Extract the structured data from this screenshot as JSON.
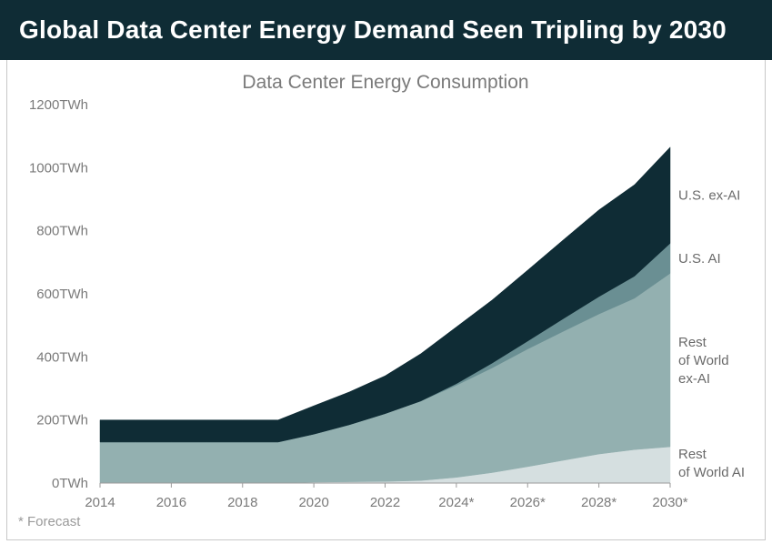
{
  "header": {
    "title": "Global Data Center Energy Demand Seen Tripling by 2030"
  },
  "footnote": "* Forecast",
  "chart_data": {
    "type": "area",
    "stacked": true,
    "title": "Data Center Energy Consumption",
    "xlabel": "",
    "ylabel": "",
    "x": [
      2014,
      2015,
      2016,
      2017,
      2018,
      2019,
      2020,
      2021,
      2022,
      2023,
      2024,
      2025,
      2026,
      2027,
      2028,
      2029,
      2030
    ],
    "x_tick_labels": [
      "2014",
      "2016",
      "2018",
      "2020",
      "2022",
      "2024*",
      "2026*",
      "2028*",
      "2030*"
    ],
    "x_tick_values": [
      2014,
      2016,
      2018,
      2020,
      2022,
      2024,
      2026,
      2028,
      2030
    ],
    "y_tick_labels": [
      "0TWh",
      "200TWh",
      "400TWh",
      "600TWh",
      "800TWh",
      "1000TWh",
      "1200TWh"
    ],
    "y_tick_values": [
      0,
      200,
      400,
      600,
      800,
      1000,
      1200
    ],
    "ylim": [
      0,
      1200
    ],
    "xlim": [
      2014,
      2030
    ],
    "grid": false,
    "legend": "right-inline",
    "series": [
      {
        "name": "Rest of World AI",
        "label_lines": [
          "Rest",
          "of World AI"
        ],
        "color": "#d5dfe0",
        "values": [
          0,
          0,
          0,
          0,
          0,
          0,
          3,
          4,
          5,
          8,
          18,
          33,
          52,
          72,
          92,
          106,
          115
        ]
      },
      {
        "name": "Rest of World ex-AI",
        "label_lines": [
          "Rest",
          "of World",
          "ex-AI"
        ],
        "color": "#93b0b0",
        "values": [
          130,
          130,
          130,
          130,
          130,
          130,
          152,
          181,
          215,
          252,
          292,
          332,
          373,
          409,
          444,
          480,
          550
        ]
      },
      {
        "name": "U.S. AI",
        "label_lines": [
          "U.S. AI"
        ],
        "color": "#6a8f93",
        "values": [
          0,
          0,
          0,
          0,
          0,
          0,
          0,
          0,
          0,
          0,
          5,
          15,
          25,
          40,
          55,
          70,
          95
        ]
      },
      {
        "name": "U.S. ex-AI",
        "label_lines": [
          "U.S. ex-AI"
        ],
        "color": "#0f2c35",
        "values": [
          70,
          70,
          70,
          70,
          70,
          70,
          90,
          104,
          120,
          150,
          180,
          200,
          225,
          250,
          275,
          290,
          305
        ]
      }
    ]
  }
}
